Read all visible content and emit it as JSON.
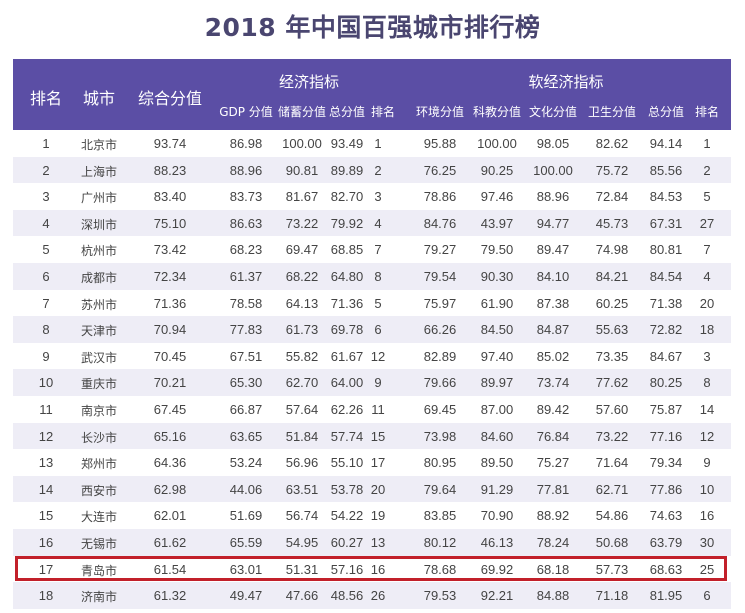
{
  "title": "2018 年中国百强城市排行榜",
  "colors": {
    "header_bg": "#5b4ea5",
    "title_text": "#4a4670",
    "stripe_bg": "#eeedf6",
    "highlight_border": "#c2202a"
  },
  "header": {
    "rank": "排名",
    "city": "城市",
    "composite": "综合分值",
    "economic_group": "经济指标",
    "soft_group": "软经济指标",
    "economic_sub": [
      "GDP 分值",
      "储蓄分值",
      "总分值",
      "排名"
    ],
    "soft_sub": [
      "环境分值",
      "科教分值",
      "文化分值",
      "卫生分值",
      "总分值",
      "排名"
    ]
  },
  "highlighted_row_rank": 17,
  "rows": [
    {
      "rank": "1",
      "city": "北京市",
      "composite": "93.74",
      "gdp": "86.98",
      "savings": "100.00",
      "econ_total": "93.49",
      "econ_rank": "1",
      "env": "95.88",
      "edu": "100.00",
      "culture": "98.05",
      "health": "82.62",
      "soft_total": "94.14",
      "soft_rank": "1"
    },
    {
      "rank": "2",
      "city": "上海市",
      "composite": "88.23",
      "gdp": "88.96",
      "savings": "90.81",
      "econ_total": "89.89",
      "econ_rank": "2",
      "env": "76.25",
      "edu": "90.25",
      "culture": "100.00",
      "health": "75.72",
      "soft_total": "85.56",
      "soft_rank": "2"
    },
    {
      "rank": "3",
      "city": "广州市",
      "composite": "83.40",
      "gdp": "83.73",
      "savings": "81.67",
      "econ_total": "82.70",
      "econ_rank": "3",
      "env": "78.86",
      "edu": "97.46",
      "culture": "88.96",
      "health": "72.84",
      "soft_total": "84.53",
      "soft_rank": "5"
    },
    {
      "rank": "4",
      "city": "深圳市",
      "composite": "75.10",
      "gdp": "86.63",
      "savings": "73.22",
      "econ_total": "79.92",
      "econ_rank": "4",
      "env": "84.76",
      "edu": "43.97",
      "culture": "94.77",
      "health": "45.73",
      "soft_total": "67.31",
      "soft_rank": "27"
    },
    {
      "rank": "5",
      "city": "杭州市",
      "composite": "73.42",
      "gdp": "68.23",
      "savings": "69.47",
      "econ_total": "68.85",
      "econ_rank": "7",
      "env": "79.27",
      "edu": "79.50",
      "culture": "89.47",
      "health": "74.98",
      "soft_total": "80.81",
      "soft_rank": "7"
    },
    {
      "rank": "6",
      "city": "成都市",
      "composite": "72.34",
      "gdp": "61.37",
      "savings": "68.22",
      "econ_total": "64.80",
      "econ_rank": "8",
      "env": "79.54",
      "edu": "90.30",
      "culture": "84.10",
      "health": "84.21",
      "soft_total": "84.54",
      "soft_rank": "4"
    },
    {
      "rank": "7",
      "city": "苏州市",
      "composite": "71.36",
      "gdp": "78.58",
      "savings": "64.13",
      "econ_total": "71.36",
      "econ_rank": "5",
      "env": "75.97",
      "edu": "61.90",
      "culture": "87.38",
      "health": "60.25",
      "soft_total": "71.38",
      "soft_rank": "20"
    },
    {
      "rank": "8",
      "city": "天津市",
      "composite": "70.94",
      "gdp": "77.83",
      "savings": "61.73",
      "econ_total": "69.78",
      "econ_rank": "6",
      "env": "66.26",
      "edu": "84.50",
      "culture": "84.87",
      "health": "55.63",
      "soft_total": "72.82",
      "soft_rank": "18"
    },
    {
      "rank": "9",
      "city": "武汉市",
      "composite": "70.45",
      "gdp": "67.51",
      "savings": "55.82",
      "econ_total": "61.67",
      "econ_rank": "12",
      "env": "82.89",
      "edu": "97.40",
      "culture": "85.02",
      "health": "73.35",
      "soft_total": "84.67",
      "soft_rank": "3"
    },
    {
      "rank": "10",
      "city": "重庆市",
      "composite": "70.21",
      "gdp": "65.30",
      "savings": "62.70",
      "econ_total": "64.00",
      "econ_rank": "9",
      "env": "79.66",
      "edu": "89.97",
      "culture": "73.74",
      "health": "77.62",
      "soft_total": "80.25",
      "soft_rank": "8"
    },
    {
      "rank": "11",
      "city": "南京市",
      "composite": "67.45",
      "gdp": "66.87",
      "savings": "57.64",
      "econ_total": "62.26",
      "econ_rank": "11",
      "env": "69.45",
      "edu": "87.00",
      "culture": "89.42",
      "health": "57.60",
      "soft_total": "75.87",
      "soft_rank": "14"
    },
    {
      "rank": "12",
      "city": "长沙市",
      "composite": "65.16",
      "gdp": "63.65",
      "savings": "51.84",
      "econ_total": "57.74",
      "econ_rank": "15",
      "env": "73.98",
      "edu": "84.60",
      "culture": "76.84",
      "health": "73.22",
      "soft_total": "77.16",
      "soft_rank": "12"
    },
    {
      "rank": "13",
      "city": "郑州市",
      "composite": "64.36",
      "gdp": "53.24",
      "savings": "56.96",
      "econ_total": "55.10",
      "econ_rank": "17",
      "env": "80.95",
      "edu": "89.50",
      "culture": "75.27",
      "health": "71.64",
      "soft_total": "79.34",
      "soft_rank": "9"
    },
    {
      "rank": "14",
      "city": "西安市",
      "composite": "62.98",
      "gdp": "44.06",
      "savings": "63.51",
      "econ_total": "53.78",
      "econ_rank": "20",
      "env": "79.64",
      "edu": "91.29",
      "culture": "77.81",
      "health": "62.71",
      "soft_total": "77.86",
      "soft_rank": "10"
    },
    {
      "rank": "15",
      "city": "大连市",
      "composite": "62.01",
      "gdp": "51.69",
      "savings": "56.74",
      "econ_total": "54.22",
      "econ_rank": "19",
      "env": "83.85",
      "edu": "70.90",
      "culture": "88.92",
      "health": "54.86",
      "soft_total": "74.63",
      "soft_rank": "16"
    },
    {
      "rank": "16",
      "city": "无锡市",
      "composite": "61.62",
      "gdp": "65.59",
      "savings": "54.95",
      "econ_total": "60.27",
      "econ_rank": "13",
      "env": "80.12",
      "edu": "46.13",
      "culture": "78.24",
      "health": "50.68",
      "soft_total": "63.79",
      "soft_rank": "30"
    },
    {
      "rank": "17",
      "city": "青岛市",
      "composite": "61.54",
      "gdp": "63.01",
      "savings": "51.31",
      "econ_total": "57.16",
      "econ_rank": "16",
      "env": "78.68",
      "edu": "69.92",
      "culture": "68.18",
      "health": "57.73",
      "soft_total": "68.63",
      "soft_rank": "25"
    },
    {
      "rank": "18",
      "city": "济南市",
      "composite": "61.32",
      "gdp": "49.47",
      "savings": "47.66",
      "econ_total": "48.56",
      "econ_rank": "26",
      "env": "79.53",
      "edu": "92.21",
      "culture": "84.88",
      "health": "71.18",
      "soft_total": "81.95",
      "soft_rank": "6"
    }
  ],
  "chart_data": {
    "type": "table",
    "title": "2018 年中国百强城市排行榜",
    "columns": [
      "排名",
      "城市",
      "综合分值",
      "经济指标-GDP 分值",
      "经济指标-储蓄分值",
      "经济指标-总分值",
      "经济指标-排名",
      "软经济指标-环境分值",
      "软经济指标-科教分值",
      "软经济指标-文化分值",
      "软经济指标-卫生分值",
      "软经济指标-总分值",
      "软经济指标-排名"
    ],
    "column_groups": [
      {
        "name": "经济指标",
        "columns": [
          "GDP 分值",
          "储蓄分值",
          "总分值",
          "排名"
        ]
      },
      {
        "name": "软经济指标",
        "columns": [
          "环境分值",
          "科教分值",
          "文化分值",
          "卫生分值",
          "总分值",
          "排名"
        ]
      }
    ],
    "rows": [
      [
        1,
        "北京市",
        93.74,
        86.98,
        100.0,
        93.49,
        1,
        95.88,
        100.0,
        98.05,
        82.62,
        94.14,
        1
      ],
      [
        2,
        "上海市",
        88.23,
        88.96,
        90.81,
        89.89,
        2,
        76.25,
        90.25,
        100.0,
        75.72,
        85.56,
        2
      ],
      [
        3,
        "广州市",
        83.4,
        83.73,
        81.67,
        82.7,
        3,
        78.86,
        97.46,
        88.96,
        72.84,
        84.53,
        5
      ],
      [
        4,
        "深圳市",
        75.1,
        86.63,
        73.22,
        79.92,
        4,
        84.76,
        43.97,
        94.77,
        45.73,
        67.31,
        27
      ],
      [
        5,
        "杭州市",
        73.42,
        68.23,
        69.47,
        68.85,
        7,
        79.27,
        79.5,
        89.47,
        74.98,
        80.81,
        7
      ],
      [
        6,
        "成都市",
        72.34,
        61.37,
        68.22,
        64.8,
        8,
        79.54,
        90.3,
        84.1,
        84.21,
        84.54,
        4
      ],
      [
        7,
        "苏州市",
        71.36,
        78.58,
        64.13,
        71.36,
        5,
        75.97,
        61.9,
        87.38,
        60.25,
        71.38,
        20
      ],
      [
        8,
        "天津市",
        70.94,
        77.83,
        61.73,
        69.78,
        6,
        66.26,
        84.5,
        84.87,
        55.63,
        72.82,
        18
      ],
      [
        9,
        "武汉市",
        70.45,
        67.51,
        55.82,
        61.67,
        12,
        82.89,
        97.4,
        85.02,
        73.35,
        84.67,
        3
      ],
      [
        10,
        "重庆市",
        70.21,
        65.3,
        62.7,
        64.0,
        9,
        79.66,
        89.97,
        73.74,
        77.62,
        80.25,
        8
      ],
      [
        11,
        "南京市",
        67.45,
        66.87,
        57.64,
        62.26,
        11,
        69.45,
        87.0,
        89.42,
        57.6,
        75.87,
        14
      ],
      [
        12,
        "长沙市",
        65.16,
        63.65,
        51.84,
        57.74,
        15,
        73.98,
        84.6,
        76.84,
        73.22,
        77.16,
        12
      ],
      [
        13,
        "郑州市",
        64.36,
        53.24,
        56.96,
        55.1,
        17,
        80.95,
        89.5,
        75.27,
        71.64,
        79.34,
        9
      ],
      [
        14,
        "西安市",
        62.98,
        44.06,
        63.51,
        53.78,
        20,
        79.64,
        91.29,
        77.81,
        62.71,
        77.86,
        10
      ],
      [
        15,
        "大连市",
        62.01,
        51.69,
        56.74,
        54.22,
        19,
        83.85,
        70.9,
        88.92,
        54.86,
        74.63,
        16
      ],
      [
        16,
        "无锡市",
        61.62,
        65.59,
        54.95,
        60.27,
        13,
        80.12,
        46.13,
        78.24,
        50.68,
        63.79,
        30
      ],
      [
        17,
        "青岛市",
        61.54,
        63.01,
        51.31,
        57.16,
        16,
        78.68,
        69.92,
        68.18,
        57.73,
        68.63,
        25
      ],
      [
        18,
        "济南市",
        61.32,
        49.47,
        47.66,
        48.56,
        26,
        79.53,
        92.21,
        84.88,
        71.18,
        81.95,
        6
      ]
    ],
    "highlighted_row": "青岛市"
  }
}
